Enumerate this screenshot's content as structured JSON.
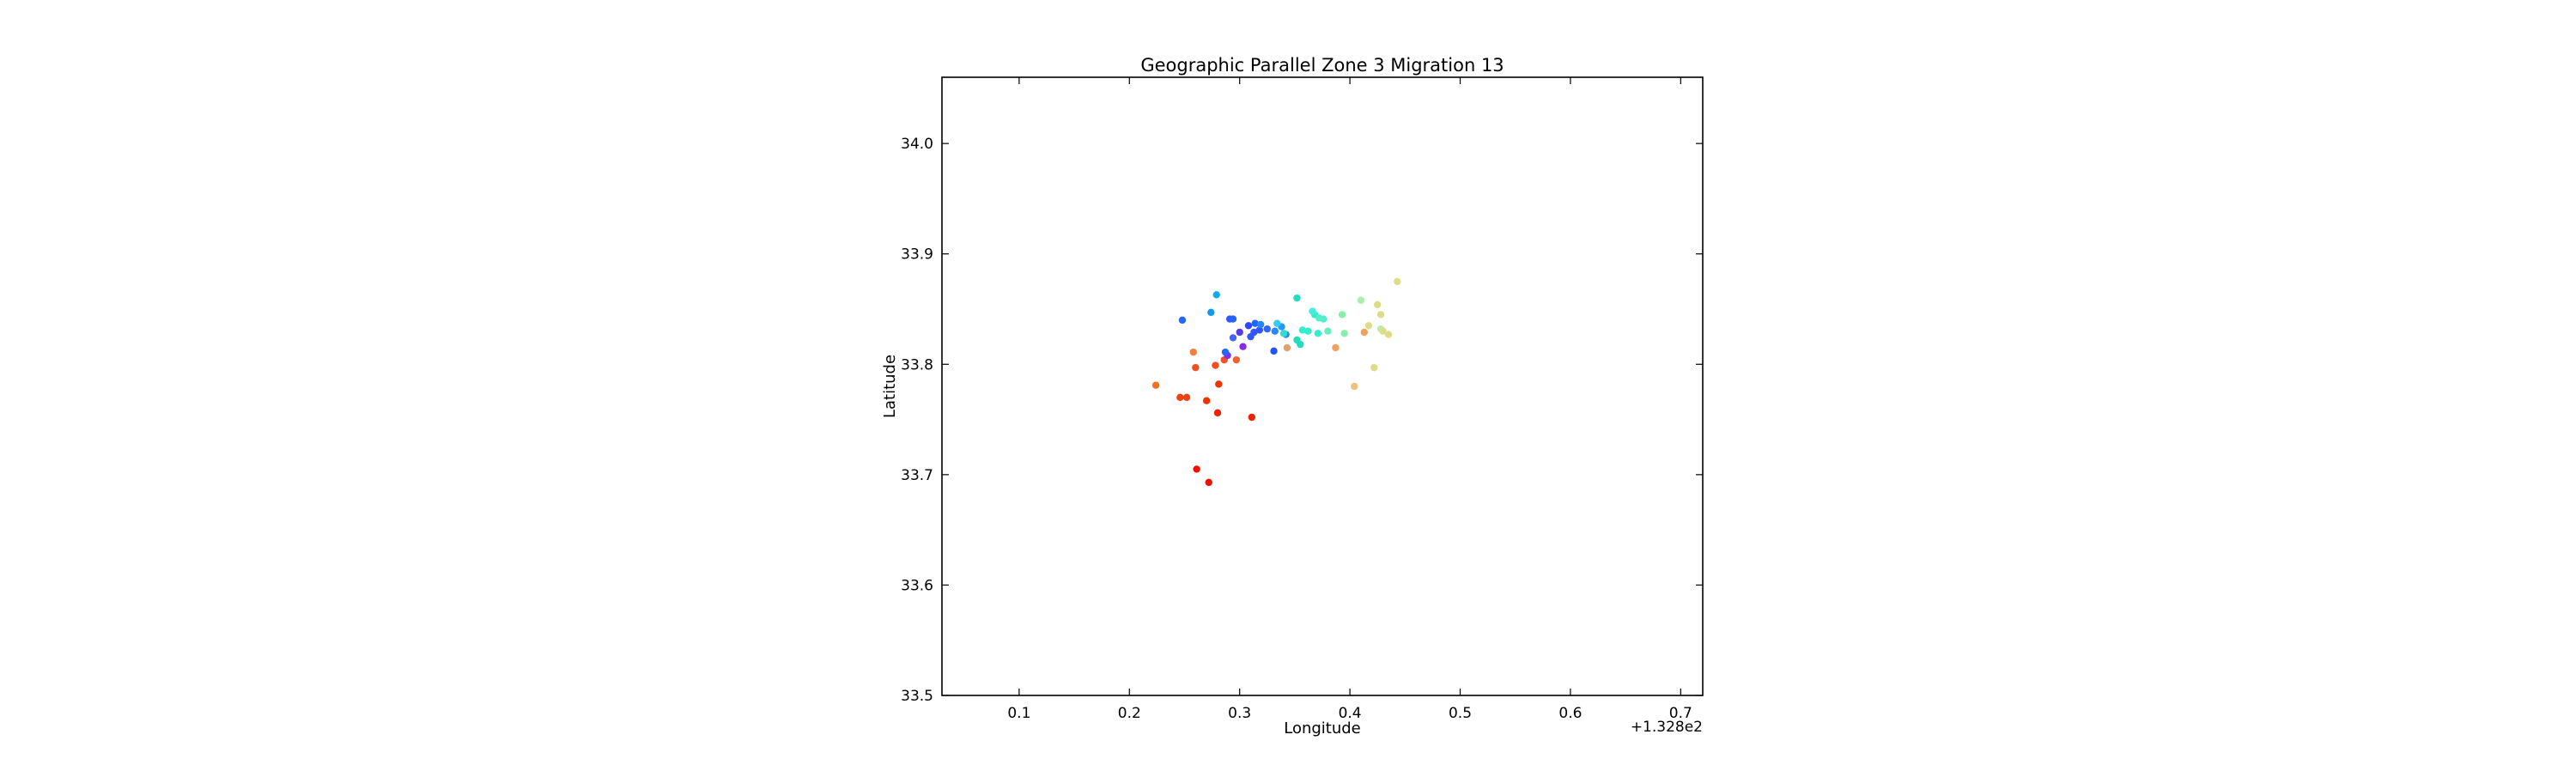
{
  "chart_data": {
    "type": "scatter",
    "title": "Geographic Parallel Zone 3 Migration 13",
    "xlabel": "Longitude",
    "ylabel": "Latitude",
    "x_offset_label": "+1.328e2",
    "xlim": [
      0.03,
      0.72
    ],
    "ylim": [
      33.5,
      34.06
    ],
    "xticks": [
      0.1,
      0.2,
      0.3,
      0.4,
      0.5,
      0.6,
      0.7
    ],
    "xtick_labels": [
      "0.1",
      "0.2",
      "0.3",
      "0.4",
      "0.5",
      "0.6",
      "0.7"
    ],
    "yticks": [
      33.5,
      33.6,
      33.7,
      33.8,
      33.9,
      34.0
    ],
    "ytick_labels": [
      "33.5",
      "33.6",
      "33.7",
      "33.8",
      "33.9",
      "34.0"
    ],
    "grid": false,
    "colormap": "jet",
    "x": [
      0.272,
      0.261,
      0.28,
      0.311,
      0.27,
      0.281,
      0.246,
      0.252,
      0.224,
      0.26,
      0.278,
      0.286,
      0.297,
      0.258,
      0.303,
      0.289,
      0.3,
      0.294,
      0.308,
      0.313,
      0.318,
      0.325,
      0.332,
      0.338,
      0.342,
      0.31,
      0.287,
      0.331,
      0.248,
      0.274,
      0.279,
      0.291,
      0.294,
      0.314,
      0.319,
      0.334,
      0.34,
      0.352,
      0.355,
      0.357,
      0.362,
      0.368,
      0.371,
      0.352,
      0.366,
      0.376,
      0.372,
      0.38,
      0.395,
      0.393,
      0.41,
      0.428,
      0.425,
      0.417,
      0.413,
      0.387,
      0.343,
      0.428,
      0.435,
      0.43,
      0.422,
      0.443,
      0.404
    ],
    "y": [
      33.693,
      33.705,
      33.756,
      33.752,
      33.767,
      33.782,
      33.77,
      33.77,
      33.781,
      33.797,
      33.799,
      33.804,
      33.804,
      33.811,
      33.816,
      33.808,
      33.829,
      33.824,
      33.835,
      33.829,
      33.831,
      33.832,
      33.83,
      33.834,
      33.827,
      33.825,
      33.811,
      33.812,
      33.84,
      33.847,
      33.863,
      33.841,
      33.841,
      33.837,
      33.836,
      33.837,
      33.828,
      33.822,
      33.818,
      33.831,
      33.83,
      33.845,
      33.828,
      33.86,
      33.848,
      33.841,
      33.842,
      33.83,
      33.828,
      33.845,
      33.858,
      33.832,
      33.854,
      33.835,
      33.829,
      33.815,
      33.815,
      33.845,
      33.827,
      33.83,
      33.797,
      33.875,
      33.78
    ],
    "colors": [
      "#ee1100",
      "#ee1100",
      "#ee2200",
      "#ee2200",
      "#ee3300",
      "#ee3300",
      "#f04010",
      "#f04010",
      "#f07020",
      "#f05020",
      "#f05020",
      "#f05030",
      "#f06030",
      "#f08040",
      "#8a2be2",
      "#8a2be2",
      "#5a3ae8",
      "#4466ee",
      "#3344ff",
      "#3355ff",
      "#3355ff",
      "#3366ff",
      "#2288ff",
      "#2299ff",
      "#2288ff",
      "#3355ff",
      "#2266ff",
      "#2255ff",
      "#2266ff",
      "#1199ee",
      "#11aaee",
      "#3355ff",
      "#2266ff",
      "#2266ff",
      "#2288ff",
      "#33ccee",
      "#33ddcc",
      "#22ddbb",
      "#22ddbb",
      "#33eecc",
      "#33eecc",
      "#33eecc",
      "#33eecc",
      "#22ddbb",
      "#44eedd",
      "#55eecc",
      "#55eecc",
      "#66eebb",
      "#88eeaa",
      "#88eeaa",
      "#aaeeaa",
      "#bbeeaa",
      "#dddd88",
      "#dddd88",
      "#f0a060",
      "#f0a060",
      "#e0a070",
      "#dddd88",
      "#dddd88",
      "#dddd88",
      "#dddd88",
      "#dddd88",
      "#f0c080"
    ]
  }
}
